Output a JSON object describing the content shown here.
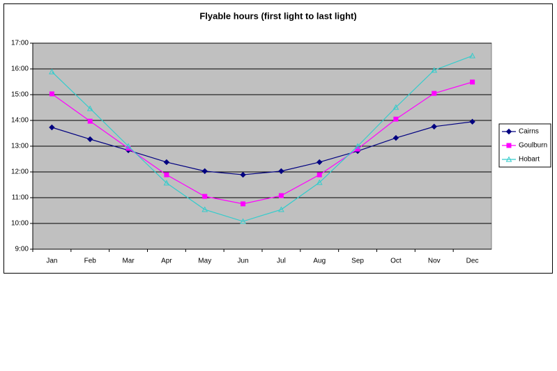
{
  "chart_data": {
    "type": "line",
    "title": "Flyable hours (first light to last light)",
    "categories": [
      "Jan",
      "Feb",
      "Mar",
      "Apr",
      "May",
      "Jun",
      "Jul",
      "Aug",
      "Sep",
      "Oct",
      "Nov",
      "Dec"
    ],
    "series": [
      {
        "name": "Cairns",
        "color": "#000080",
        "marker": "diamond",
        "values": [
          13.73,
          13.27,
          12.84,
          12.38,
          12.03,
          11.89,
          12.03,
          12.38,
          12.81,
          13.32,
          13.76,
          13.95
        ]
      },
      {
        "name": "Goulburn",
        "color": "#ff00ff",
        "marker": "square",
        "values": [
          15.03,
          13.97,
          12.92,
          11.89,
          11.05,
          10.76,
          11.08,
          11.89,
          12.89,
          14.05,
          15.05,
          15.49
        ]
      },
      {
        "name": "Hobart",
        "color": "#33cccc",
        "marker": "triangle",
        "values": [
          15.89,
          14.46,
          13.0,
          11.57,
          10.54,
          10.08,
          10.54,
          11.59,
          13.0,
          14.51,
          15.95,
          16.51
        ]
      }
    ],
    "ylim": [
      9,
      17
    ],
    "yticks": [
      {
        "value": 9,
        "label": "9:00"
      },
      {
        "value": 10,
        "label": "10:00"
      },
      {
        "value": 11,
        "label": "11:00"
      },
      {
        "value": 12,
        "label": "12:00"
      },
      {
        "value": 13,
        "label": "13:00"
      },
      {
        "value": 14,
        "label": "14:00"
      },
      {
        "value": 15,
        "label": "15:00"
      },
      {
        "value": 16,
        "label": "16:00"
      },
      {
        "value": 17,
        "label": "17:00"
      }
    ],
    "grid": true,
    "plot_background": "#c0c0c0",
    "legend": "right"
  }
}
